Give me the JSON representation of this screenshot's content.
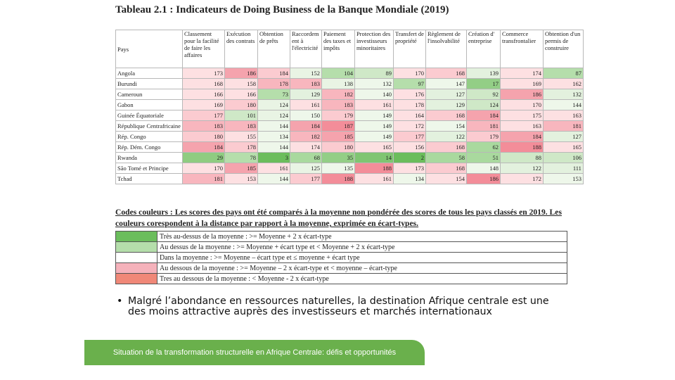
{
  "title": "Tableau 2.1 : Indicateurs de Doing Business de la Banque Mondiale (2019)",
  "table": {
    "headers": [
      "Pays",
      "Classement pour la facilité de faire les affaires",
      "Exécution des contrats",
      "Obtention de prêts",
      "Raccordem ent à l'électricité",
      "Paiement des taxes et impôts",
      "Protection des investisseurs minoritaires",
      "Transfert de propriété",
      "Règlement de l'insolvabilité",
      "Création d' entreprise",
      "Commerce transfrontalier",
      "Obtention d'un permis de construire"
    ],
    "rows": [
      {
        "country": "Angola",
        "values": [
          173,
          186,
          184,
          152,
          104,
          89,
          170,
          168,
          139,
          174,
          87
        ],
        "colors": [
          "#fde0e2",
          "#f5a3ad",
          "#fbcbd0",
          "#e9f4e4",
          "#b5deab",
          "#cfe8c7",
          "#fde0e2",
          "#fbcbd0",
          "#e3f1de",
          "#fde0e2",
          "#b5deab"
        ]
      },
      {
        "country": "Burundi",
        "values": [
          168,
          158,
          178,
          183,
          138,
          132,
          97,
          147,
          17,
          169,
          162
        ],
        "colors": [
          "#fde0e2",
          "#fde0e2",
          "#f8b6be",
          "#f8b6be",
          "#e9f4e4",
          "#eef7ea",
          "#b5deab",
          "#eef7ea",
          "#93ce86",
          "#fde0e2",
          "#fde0e2"
        ]
      },
      {
        "country": "Cameroun",
        "values": [
          166,
          166,
          73,
          129,
          182,
          140,
          176,
          127,
          92,
          186,
          132
        ],
        "colors": [
          "#fde0e2",
          "#fde0e2",
          "#b5deab",
          "#e3f1de",
          "#f8b6be",
          "#eef7ea",
          "#fde0e2",
          "#e3f1de",
          "#cfe8c7",
          "#f5a3ad",
          "#e3f1de"
        ]
      },
      {
        "country": "Gabon",
        "values": [
          169,
          180,
          124,
          161,
          183,
          161,
          178,
          129,
          124,
          170,
          144
        ],
        "colors": [
          "#fde0e2",
          "#fbcbd0",
          "#e9f4e4",
          "#fde0e2",
          "#f8b6be",
          "#fde0e2",
          "#fde0e2",
          "#e3f1de",
          "#cfe8c7",
          "#fde0e2",
          "#eef7ea"
        ]
      },
      {
        "country": "Guinée Équatoriale",
        "values": [
          177,
          101,
          124,
          150,
          179,
          149,
          164,
          168,
          184,
          175,
          163
        ],
        "colors": [
          "#fbcbd0",
          "#cfe8c7",
          "#e9f4e4",
          "#eef7ea",
          "#fbcbd0",
          "#eef7ea",
          "#fde0e2",
          "#fbcbd0",
          "#f5a3ad",
          "#fde0e2",
          "#fde0e2"
        ]
      },
      {
        "country": "République Centrafricaine",
        "values": [
          183,
          183,
          144,
          184,
          187,
          149,
          172,
          154,
          181,
          163,
          181
        ],
        "colors": [
          "#f8b6be",
          "#f8b6be",
          "#eef7ea",
          "#f5a3ad",
          "#f38d99",
          "#eef7ea",
          "#fde0e2",
          "#eef7ea",
          "#f8b6be",
          "#fde0e2",
          "#f8b6be"
        ]
      },
      {
        "country": "Rép. Congo",
        "values": [
          180,
          155,
          134,
          182,
          185,
          149,
          177,
          122,
          179,
          184,
          127
        ],
        "colors": [
          "#fbcbd0",
          "#fde0e2",
          "#eef7ea",
          "#f8b6be",
          "#f5a3ad",
          "#eef7ea",
          "#fbcbd0",
          "#e3f1de",
          "#fbcbd0",
          "#f5a3ad",
          "#e3f1de"
        ]
      },
      {
        "country": "Rép. Dém. Congo",
        "values": [
          184,
          178,
          144,
          174,
          180,
          165,
          156,
          168,
          62,
          188,
          165
        ],
        "colors": [
          "#f5a3ad",
          "#fbcbd0",
          "#eef7ea",
          "#fde0e2",
          "#fbcbd0",
          "#fde0e2",
          "#fde0e2",
          "#fbcbd0",
          "#a9d99e",
          "#f38d99",
          "#fde0e2"
        ]
      },
      {
        "country": "Rwanda",
        "values": [
          29,
          78,
          3,
          68,
          35,
          14,
          2,
          58,
          51,
          88,
          106
        ],
        "colors": [
          "#8fcc81",
          "#b5deab",
          "#6bbd5c",
          "#a9d99e",
          "#93ce86",
          "#7fc572",
          "#6bbd5c",
          "#a9d99e",
          "#a9d99e",
          "#cfe8c7",
          "#cfe8c7"
        ]
      },
      {
        "country": "São Tomé et Principe",
        "values": [
          170,
          185,
          161,
          125,
          135,
          188,
          173,
          168,
          148,
          122,
          111
        ],
        "colors": [
          "#fde0e2",
          "#f5a3ad",
          "#fde0e2",
          "#e9f4e4",
          "#eef7ea",
          "#f38d99",
          "#fde0e2",
          "#fbcbd0",
          "#eef7ea",
          "#e3f1de",
          "#e3f1de"
        ]
      },
      {
        "country": "Tchad",
        "values": [
          181,
          153,
          144,
          177,
          188,
          161,
          134,
          154,
          186,
          172,
          153
        ],
        "colors": [
          "#f8b6be",
          "#fde0e2",
          "#eef7ea",
          "#fbcbd0",
          "#f38d99",
          "#fde0e2",
          "#eef7ea",
          "#fde0e2",
          "#f38d99",
          "#fde0e2",
          "#eef7ea"
        ]
      }
    ]
  },
  "codes_text": "Codes couleurs : Les scores des pays ont été comparés à la moyenne non pondérée des scores de tous les pays classés en 2019. Les couleurs corespondent à la distance par rapport à la moyenne, exprimée en écart-types.",
  "legend": [
    {
      "color": "#6bbd5c",
      "label": "Très au-dessus de la moyenne : >= Moyenne + 2 x écart-type"
    },
    {
      "color": "#b5deab",
      "label": "Au dessus de la moyenne : >= Moyenne + écart type et < Moyenne + 2 x écart-type"
    },
    {
      "color": "#ffffff",
      "label": "Dans la moyenne : >= Moyenne – écart type et ≤ moyenne + écart type"
    },
    {
      "color": "#f5b2bb",
      "label": "Au dessous de la moyenne : >= Moyenne – 2 x écart-type et < moyenne – écart-type"
    },
    {
      "color": "#f08878",
      "label": "Tres au dessous de la moyenne : < Moyenne - 2 x écart-type"
    }
  ],
  "bullet": {
    "symbol": "•",
    "text": "Malgré l’abondance en ressources naturelles, la destination Afrique centrale est une des moins attractive auprès des investisseurs et marchés internationaux"
  },
  "footer": "Situation de la transformation structurelle en Afrique Centrale:  défis et opportunités"
}
